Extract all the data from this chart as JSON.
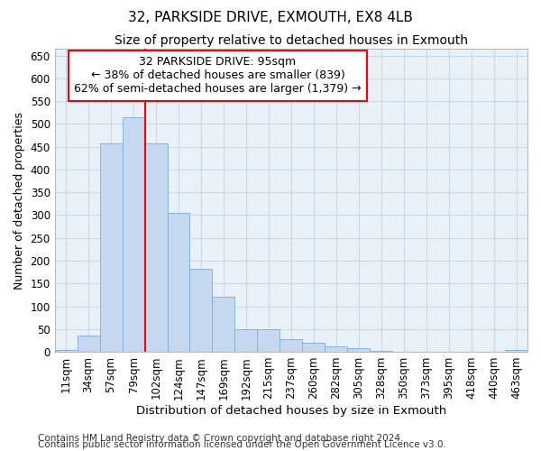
{
  "title1": "32, PARKSIDE DRIVE, EXMOUTH, EX8 4LB",
  "title2": "Size of property relative to detached houses in Exmouth",
  "xlabel": "Distribution of detached houses by size in Exmouth",
  "ylabel": "Number of detached properties",
  "categories": [
    "11sqm",
    "34sqm",
    "57sqm",
    "79sqm",
    "102sqm",
    "124sqm",
    "147sqm",
    "169sqm",
    "192sqm",
    "215sqm",
    "237sqm",
    "260sqm",
    "282sqm",
    "305sqm",
    "328sqm",
    "350sqm",
    "373sqm",
    "395sqm",
    "418sqm",
    "440sqm",
    "463sqm"
  ],
  "values": [
    5,
    35,
    457,
    515,
    457,
    305,
    182,
    120,
    50,
    50,
    28,
    20,
    13,
    8,
    3,
    1,
    1,
    0,
    0,
    0,
    5
  ],
  "bar_color": "#c5d8f0",
  "bar_edge_color": "#7aadd4",
  "grid_color": "#c8daea",
  "bg_color": "#e8f0f8",
  "vline_color": "red",
  "annotation_title": "32 PARKSIDE DRIVE: 95sqm",
  "annotation_line1": "← 38% of detached houses are smaller (839)",
  "annotation_line2": "62% of semi-detached houses are larger (1,379) →",
  "annotation_box_color": "white",
  "annotation_border_color": "red",
  "ylim": [
    0,
    665
  ],
  "yticks": [
    0,
    50,
    100,
    150,
    200,
    250,
    300,
    350,
    400,
    450,
    500,
    550,
    600,
    650
  ],
  "footer1": "Contains HM Land Registry data © Crown copyright and database right 2024.",
  "footer2": "Contains public sector information licensed under the Open Government Licence v3.0.",
  "title1_fontsize": 11,
  "title2_fontsize": 10,
  "xlabel_fontsize": 9.5,
  "ylabel_fontsize": 9,
  "tick_fontsize": 8.5,
  "annotation_fontsize": 9,
  "footer_fontsize": 7.5
}
